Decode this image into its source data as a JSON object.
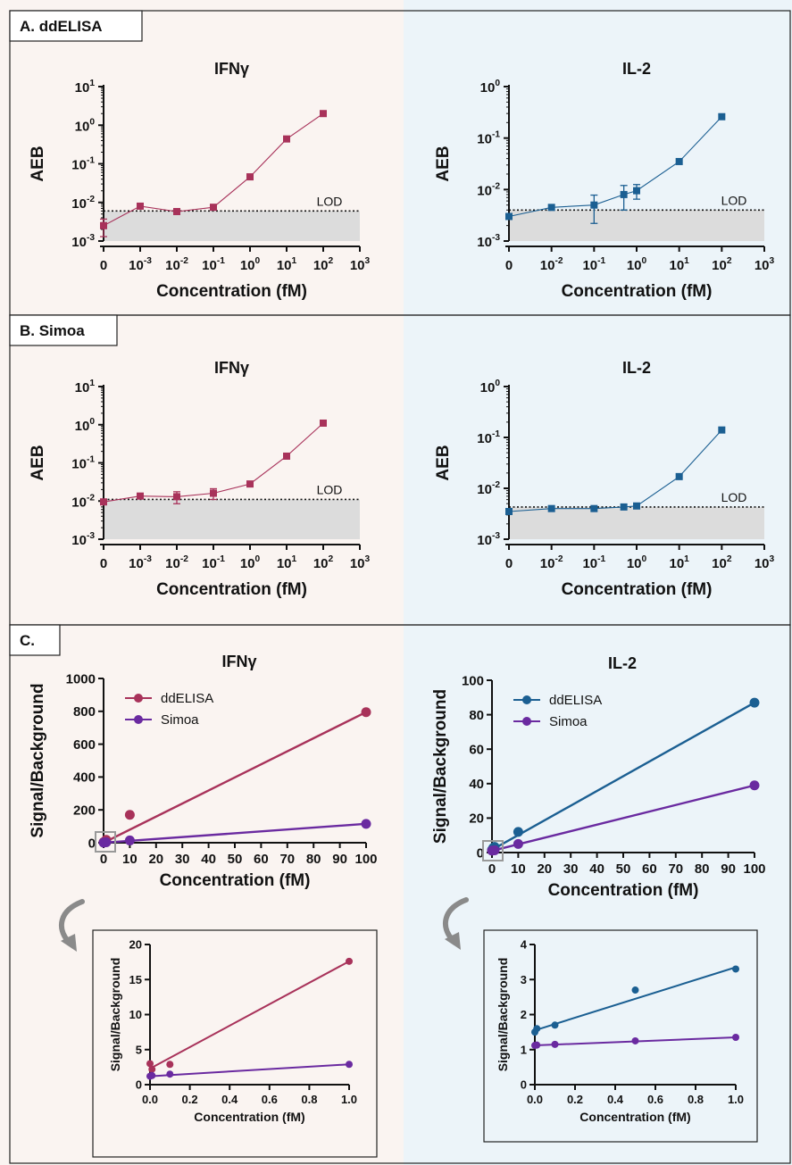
{
  "colors": {
    "ifn": "#a8325a",
    "il2": "#1b5f92",
    "simoa": "#6a2aa0",
    "bg_left": "#faf4f1",
    "bg_right": "#ecf4f9",
    "lod_band": "#dcdcdc"
  },
  "sections": [
    {
      "label": "A. ddELISA"
    },
    {
      "label": "B. Simoa"
    },
    {
      "label": "C."
    }
  ],
  "chart_data": [
    {
      "type": "line",
      "id": "A-ifn",
      "section": "A. ddELISA",
      "title": "IFNγ",
      "xlabel": "Concentration (fM)",
      "ylabel": "AEB",
      "xscale": "log-with-zero",
      "yscale": "log",
      "x_ticks": [
        "0",
        "10-3",
        "10-2",
        "10-1",
        "100",
        "101",
        "102",
        "103"
      ],
      "y_ticks": [
        "10-3",
        "10-2",
        "10-1",
        "100",
        "101"
      ],
      "ylim": [
        0.001,
        10
      ],
      "lod": {
        "label": "LOD",
        "value": 0.006
      },
      "series": [
        {
          "x": [
            0,
            0.001,
            0.01,
            0.1,
            1,
            10,
            100
          ],
          "y": [
            0.0025,
            0.008,
            0.0058,
            0.0075,
            0.046,
            0.44,
            2.0
          ],
          "err": [
            0.0012,
            0.0008,
            0.0006,
            0.0008,
            0.004,
            0.03,
            0.15
          ]
        }
      ]
    },
    {
      "type": "line",
      "id": "A-il2",
      "section": "A. ddELISA",
      "title": "IL-2",
      "xlabel": "Concentration (fM)",
      "ylabel": "AEB",
      "xscale": "log-with-zero",
      "yscale": "log",
      "x_ticks": [
        "0",
        "10-2",
        "10-1",
        "100",
        "101",
        "102",
        "103"
      ],
      "y_ticks": [
        "10-3",
        "10-2",
        "10-1",
        "100"
      ],
      "ylim": [
        0.001,
        1
      ],
      "lod": {
        "label": "LOD",
        "value": 0.004
      },
      "series": [
        {
          "x": [
            0,
            0.01,
            0.1,
            0.5,
            1,
            10,
            100
          ],
          "y": [
            0.003,
            0.0045,
            0.005,
            0.008,
            0.0095,
            0.035,
            0.26
          ],
          "err": [
            0.0003,
            0.0003,
            0.0028,
            0.004,
            0.003,
            0.004,
            0.02
          ]
        }
      ]
    },
    {
      "type": "line",
      "id": "B-ifn",
      "section": "B. Simoa",
      "title": "IFNγ",
      "xlabel": "Concentration (fM)",
      "ylabel": "AEB",
      "xscale": "log-with-zero",
      "yscale": "log",
      "x_ticks": [
        "0",
        "10-3",
        "10-2",
        "10-1",
        "100",
        "101",
        "102",
        "103"
      ],
      "y_ticks": [
        "10-3",
        "10-2",
        "10-1",
        "100",
        "101"
      ],
      "ylim": [
        0.001,
        10
      ],
      "lod": {
        "label": "LOD",
        "value": 0.011
      },
      "series": [
        {
          "x": [
            0,
            0.001,
            0.01,
            0.1,
            1,
            10,
            100
          ],
          "y": [
            0.0095,
            0.0135,
            0.013,
            0.016,
            0.028,
            0.15,
            1.1
          ],
          "err": [
            0.001,
            0.0015,
            0.0045,
            0.005,
            0.003,
            0.012,
            0.08
          ]
        }
      ]
    },
    {
      "type": "line",
      "id": "B-il2",
      "section": "B. Simoa",
      "title": "IL-2",
      "xlabel": "Concentration (fM)",
      "ylabel": "AEB",
      "xscale": "log-with-zero",
      "yscale": "log",
      "x_ticks": [
        "0",
        "10-2",
        "10-1",
        "100",
        "101",
        "102",
        "103"
      ],
      "y_ticks": [
        "10-3",
        "10-2",
        "10-1",
        "100"
      ],
      "ylim": [
        0.001,
        1
      ],
      "lod": {
        "label": "LOD",
        "value": 0.0043
      },
      "series": [
        {
          "x": [
            0,
            0.01,
            0.1,
            0.5,
            1,
            10,
            100
          ],
          "y": [
            0.0035,
            0.004,
            0.004,
            0.0043,
            0.0045,
            0.017,
            0.14
          ],
          "err": [
            0.0003,
            0.0002,
            0.0002,
            0.0002,
            0.0003,
            0.0015,
            0.01
          ]
        }
      ]
    },
    {
      "type": "scatter",
      "id": "C-ifn",
      "section": "C.",
      "title": "IFNγ",
      "xlabel": "Concentration (fM)",
      "ylabel": "Signal/Background",
      "xlim": [
        0,
        100
      ],
      "ylim": [
        0,
        1000
      ],
      "x_ticks": [
        0,
        10,
        20,
        30,
        40,
        50,
        60,
        70,
        80,
        90,
        100
      ],
      "y_ticks": [
        0,
        200,
        400,
        600,
        800,
        1000
      ],
      "legend": "top-left",
      "series": [
        {
          "name": "ddELISA",
          "x": [
            0,
            0.01,
            0.1,
            1,
            10,
            100
          ],
          "y": [
            3,
            2.5,
            3,
            17.5,
            170,
            795
          ],
          "fit": [
            [
              0,
              0
            ],
            [
              100,
              795
            ]
          ]
        },
        {
          "name": "Simoa",
          "x": [
            0,
            0.1,
            1,
            10,
            100
          ],
          "y": [
            1,
            1.5,
            3,
            14,
            115
          ],
          "fit": [
            [
              0,
              0
            ],
            [
              100,
              115
            ]
          ]
        }
      ]
    },
    {
      "type": "scatter",
      "id": "C-il2",
      "section": "C.",
      "title": "IL-2",
      "xlabel": "Concentration (fM)",
      "ylabel": "Signal/Background",
      "xlim": [
        0,
        100
      ],
      "ylim": [
        0,
        100
      ],
      "x_ticks": [
        0,
        10,
        20,
        30,
        40,
        50,
        60,
        70,
        80,
        90,
        100
      ],
      "y_ticks": [
        0,
        20,
        40,
        60,
        80,
        100
      ],
      "legend": "top-left",
      "series": [
        {
          "name": "ddELISA",
          "x": [
            0,
            0.5,
            1,
            10,
            100
          ],
          "y": [
            1.5,
            2.7,
            3.3,
            12,
            87
          ],
          "fit": [
            [
              0,
              1.6
            ],
            [
              100,
              87
            ]
          ]
        },
        {
          "name": "Simoa",
          "x": [
            0,
            1,
            10,
            100
          ],
          "y": [
            1.1,
            1.3,
            5,
            39
          ],
          "fit": [
            [
              0,
              1
            ],
            [
              100,
              39
            ]
          ]
        }
      ]
    },
    {
      "type": "scatter",
      "id": "C-ifn-inset",
      "section": "C.",
      "xlabel": "Concentration (fM)",
      "ylabel": "Signal/Background",
      "xlim": [
        0,
        1
      ],
      "ylim": [
        0,
        20
      ],
      "x_ticks": [
        "0.0",
        "0.2",
        "0.4",
        "0.6",
        "0.8",
        "1.0"
      ],
      "y_ticks": [
        0,
        5,
        10,
        15,
        20
      ],
      "series": [
        {
          "name": "ddELISA",
          "x": [
            0,
            0.01,
            0.1,
            1
          ],
          "y": [
            3,
            2.2,
            2.9,
            17.6
          ],
          "fit": [
            [
              0,
              2.3
            ],
            [
              1,
              17.6
            ]
          ]
        },
        {
          "name": "Simoa",
          "x": [
            0,
            0.01,
            0.1,
            1
          ],
          "y": [
            1.2,
            1.3,
            1.5,
            2.9
          ],
          "fit": [
            [
              0,
              1.2
            ],
            [
              1,
              2.9
            ]
          ]
        }
      ]
    },
    {
      "type": "scatter",
      "id": "C-il2-inset",
      "section": "C.",
      "xlabel": "Concentration (fM)",
      "ylabel": "Signal/Background",
      "xlim": [
        0,
        1
      ],
      "ylim": [
        0,
        4
      ],
      "x_ticks": [
        "0.0",
        "0.2",
        "0.4",
        "0.6",
        "0.8",
        "1.0"
      ],
      "y_ticks": [
        0,
        1,
        2,
        3,
        4
      ],
      "series": [
        {
          "name": "ddELISA",
          "x": [
            0,
            0.01,
            0.1,
            0.5,
            1
          ],
          "y": [
            1.5,
            1.6,
            1.7,
            2.7,
            3.3
          ],
          "fit": [
            [
              0,
              1.55
            ],
            [
              1,
              3.35
            ]
          ]
        },
        {
          "name": "Simoa",
          "x": [
            0,
            0.01,
            0.1,
            0.5,
            1
          ],
          "y": [
            1.12,
            1.13,
            1.15,
            1.25,
            1.35
          ],
          "fit": [
            [
              0,
              1.12
            ],
            [
              1,
              1.35
            ]
          ]
        }
      ]
    }
  ]
}
